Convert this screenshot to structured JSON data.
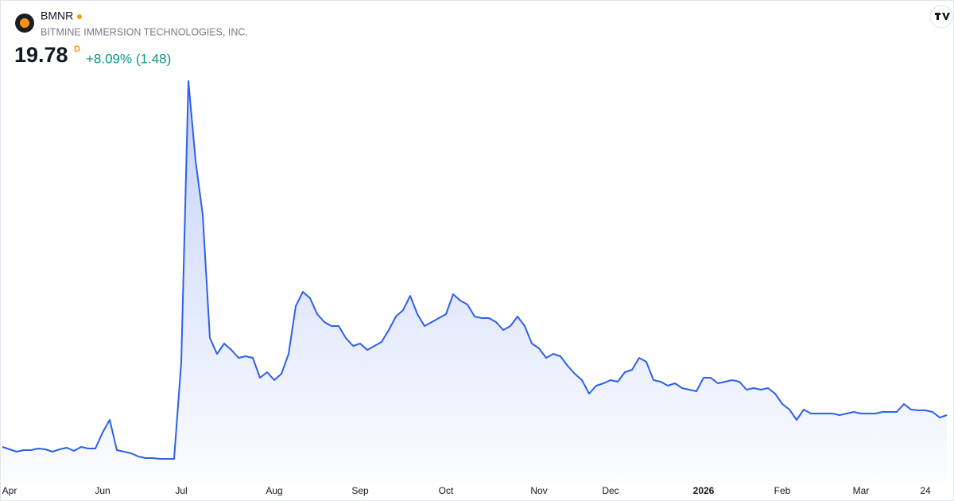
{
  "chart_data": {
    "type": "line",
    "title": "BMNR",
    "subtitle": "BITMINE IMMERSION TECHNOLOGIES, INC.",
    "last_price": 19.78,
    "interval": "D",
    "change": "+8.09% (1.48)",
    "color": "#2f5fe8",
    "categories": [
      null,
      "Apr",
      null,
      null,
      null,
      null,
      null,
      null,
      null,
      null,
      null,
      null,
      null,
      null,
      "Jun",
      null,
      null,
      null,
      null,
      null,
      null,
      null,
      null,
      null,
      null,
      "Jul",
      null,
      null,
      null,
      null,
      null,
      null,
      null,
      null,
      null,
      null,
      null,
      null,
      "Aug",
      null,
      null,
      null,
      null,
      null,
      null,
      null,
      null,
      null,
      null,
      null,
      "Sep",
      null,
      null,
      null,
      null,
      null,
      null,
      null,
      null,
      null,
      null,
      null,
      "Oct",
      null,
      null,
      null,
      null,
      null,
      null,
      null,
      null,
      null,
      null,
      null,
      null,
      "Nov",
      null,
      null,
      null,
      null,
      null,
      null,
      null,
      null,
      null,
      "Dec",
      null,
      null,
      null,
      null,
      null,
      null,
      null,
      null,
      null,
      null,
      null,
      null,
      "2026",
      null,
      null,
      null,
      null,
      null,
      null,
      null,
      null,
      null,
      null,
      "Feb",
      null,
      null,
      null,
      null,
      null,
      null,
      null,
      null,
      null,
      null,
      "Mar",
      null,
      null,
      null,
      null,
      null,
      null,
      null,
      null,
      "24",
      null,
      null,
      null
    ],
    "values": [
      9.4,
      8.63,
      7.85,
      8.37,
      8.37,
      8.89,
      8.63,
      7.85,
      8.63,
      9.14,
      8.11,
      9.4,
      8.89,
      8.89,
      14.07,
      18.22,
      8.37,
      7.85,
      7.33,
      6.29,
      5.77,
      5.77,
      5.51,
      5.51,
      5.51,
      37.16,
      128.73,
      102.79,
      85.15,
      44.94,
      39.75,
      43.13,
      41.05,
      38.46,
      38.98,
      38.46,
      31.97,
      33.79,
      31.19,
      33.27,
      39.75,
      55.32,
      59.99,
      57.91,
      52.72,
      50.13,
      48.83,
      48.83,
      44.94,
      42.35,
      43.13,
      41.05,
      42.35,
      43.64,
      47.54,
      51.95,
      54.02,
      58.69,
      52.72,
      48.83,
      50.13,
      51.43,
      52.72,
      59.21,
      57.13,
      55.84,
      51.95,
      51.43,
      51.43,
      50.13,
      47.54,
      48.83,
      51.95,
      48.83,
      43.13,
      41.57,
      38.46,
      39.75,
      38.98,
      35.86,
      33.27,
      31.19,
      26.78,
      29.38,
      30.16,
      31.19,
      30.67,
      33.79,
      34.57,
      38.46,
      37.16,
      31.19,
      30.67,
      29.38,
      30.16,
      28.6,
      28.08,
      27.56,
      31.97,
      31.97,
      30.16,
      30.67,
      31.19,
      30.67,
      28.08,
      28.6,
      28.08,
      28.6,
      26.78,
      23.41,
      21.6,
      18.22,
      21.6,
      20.3,
      20.3,
      20.3,
      20.3,
      19.78,
      20.3,
      20.82,
      20.3,
      20.3,
      20.3,
      20.82,
      20.82,
      20.82,
      23.41,
      21.6,
      21.34,
      21.34,
      20.82,
      19.0,
      19.78
    ]
  }
}
